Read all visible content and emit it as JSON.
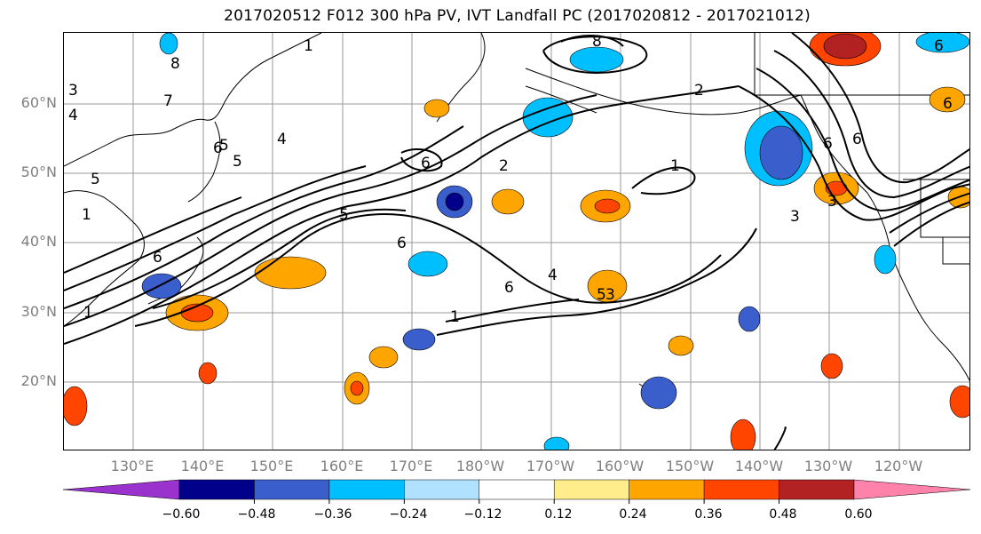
{
  "title": "2017020512 F012 300 hPa PV, IVT Landfall PC (2017020812 - 2017021012)",
  "lat_labels": [
    "60°N",
    "50°N",
    "40°N",
    "30°N",
    "20°N"
  ],
  "lon_labels": [
    "130°E",
    "140°E",
    "150°E",
    "160°E",
    "170°E",
    "180°W",
    "170°W",
    "160°W",
    "150°W",
    "140°W",
    "130°W",
    "120°W"
  ],
  "contour_labels": [
    "1",
    "8",
    "3",
    "4",
    "7",
    "5",
    "4",
    "5",
    "6",
    "8",
    "1",
    "6",
    "2",
    "6",
    "5",
    "2",
    "1",
    "6",
    "6",
    "3",
    "5",
    "6",
    "1",
    "6",
    "4",
    "3",
    "1",
    "6",
    "3",
    "6",
    "5"
  ],
  "colorbar": {
    "colors": [
      "#9a32cd",
      "#00008b",
      "#3a5fcd",
      "#00bfff",
      "#b0e2ff",
      "#ffffff",
      "#ffec8b",
      "#ffa500",
      "#ff4500",
      "#b22222",
      "#ff82ab"
    ],
    "labels": [
      "−0.60",
      "−0.48",
      "−0.36",
      "−0.24",
      "−0.12",
      "0.12",
      "0.24",
      "0.36",
      "0.48",
      "0.60"
    ]
  }
}
